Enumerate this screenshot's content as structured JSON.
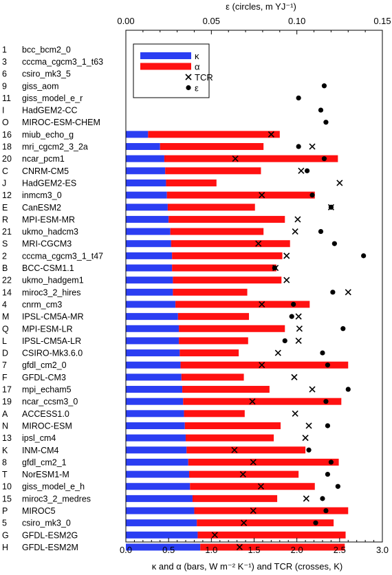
{
  "chart_data": {
    "type": "bar",
    "bar_mode": "stacked",
    "top_axis_label": "ε (circles, m YJ⁻¹)",
    "bottom_axis_label": "κ and α (bars, W m⁻² K⁻¹) and TCR (crosses, K)",
    "bottom_axis": {
      "range": [
        0.0,
        3.0
      ],
      "ticks": [
        "0.0",
        "0.5",
        "1.0",
        "1.5",
        "2.0",
        "2.5",
        "3.0"
      ]
    },
    "top_axis": {
      "range": [
        0.0,
        0.15
      ],
      "ticks": [
        "0.00",
        "0.05",
        "0.10",
        "0.15"
      ]
    },
    "legend": {
      "position": "top-left",
      "items": [
        {
          "label": "κ",
          "symbol": "bar",
          "color": "#2b3ef2"
        },
        {
          "label": "α",
          "symbol": "bar",
          "color": "#ff1111"
        },
        {
          "label": "TCR",
          "symbol": "cross",
          "color": "#000000"
        },
        {
          "label": "ε",
          "symbol": "dot",
          "color": "#000000"
        }
      ]
    },
    "colors": {
      "kappa": "#2b3ef2",
      "alpha": "#ff1111",
      "marker": "#000000"
    },
    "models": [
      {
        "code": "1",
        "name": "bcc_bcm2_0",
        "kappa": null,
        "alpha": null,
        "tcr": null,
        "eps": null
      },
      {
        "code": "3",
        "name": "cccma_cgcm3_1_t63",
        "kappa": null,
        "alpha": null,
        "tcr": null,
        "eps": null
      },
      {
        "code": "6",
        "name": "csiro_mk3_5",
        "kappa": null,
        "alpha": null,
        "tcr": null,
        "eps": null
      },
      {
        "code": "9",
        "name": "giss_aom",
        "kappa": null,
        "alpha": null,
        "tcr": null,
        "eps": 0.116
      },
      {
        "code": "11",
        "name": "giss_model_e_r",
        "kappa": null,
        "alpha": null,
        "tcr": null,
        "eps": 0.101
      },
      {
        "code": "I",
        "name": "HadGEM2-CC",
        "kappa": null,
        "alpha": null,
        "tcr": null,
        "eps": 0.114
      },
      {
        "code": "O",
        "name": "MIROC-ESM-CHEM",
        "kappa": null,
        "alpha": null,
        "tcr": null,
        "eps": 0.117
      },
      {
        "code": "16",
        "name": "miub_echo_g",
        "kappa": 0.26,
        "alpha": 1.54,
        "tcr": 1.7,
        "eps": null
      },
      {
        "code": "18",
        "name": "mri_cgcm2_3_2a",
        "kappa": 0.4,
        "alpha": 1.21,
        "tcr": 2.18,
        "eps": 0.101
      },
      {
        "code": "20",
        "name": "ncar_pcm1",
        "kappa": 0.45,
        "alpha": 2.03,
        "tcr": 1.28,
        "eps": 0.116
      },
      {
        "code": "C",
        "name": "CNRM-CM5",
        "kappa": 0.46,
        "alpha": 1.12,
        "tcr": 2.05,
        "eps": 0.106
      },
      {
        "code": "J",
        "name": "HadGEM2-ES",
        "kappa": 0.47,
        "alpha": 0.59,
        "tcr": 2.5,
        "eps": null
      },
      {
        "code": "12",
        "name": "inmcm3_0",
        "kappa": 0.48,
        "alpha": 1.73,
        "tcr": 1.59,
        "eps": 0.109
      },
      {
        "code": "E",
        "name": "CanESM2",
        "kappa": 0.49,
        "alpha": 1.02,
        "tcr": 2.4,
        "eps": 0.12
      },
      {
        "code": "R",
        "name": "MPI-ESM-MR",
        "kappa": 0.5,
        "alpha": 1.36,
        "tcr": 2.01,
        "eps": null
      },
      {
        "code": "21",
        "name": "ukmo_hadcm3",
        "kappa": 0.52,
        "alpha": 1.09,
        "tcr": 1.98,
        "eps": 0.114
      },
      {
        "code": "S",
        "name": "MRI-CGCM3",
        "kappa": 0.53,
        "alpha": 1.39,
        "tcr": 1.55,
        "eps": 0.122
      },
      {
        "code": "2",
        "name": "cccma_cgcm3_1_t47",
        "kappa": 0.54,
        "alpha": 1.29,
        "tcr": 1.88,
        "eps": 0.139
      },
      {
        "code": "B",
        "name": "BCC-CSM1.1",
        "kappa": 0.54,
        "alpha": 1.22,
        "tcr": 1.75,
        "eps": 0.087
      },
      {
        "code": "22",
        "name": "ukmo_hadgem1",
        "kappa": 0.55,
        "alpha": 1.27,
        "tcr": 1.88,
        "eps": null
      },
      {
        "code": "14",
        "name": "miroc3_2_hires",
        "kappa": 0.55,
        "alpha": 0.87,
        "tcr": 2.6,
        "eps": 0.121
      },
      {
        "code": "4",
        "name": "cnrm_cm3",
        "kappa": 0.58,
        "alpha": 1.57,
        "tcr": 1.59,
        "eps": 0.098
      },
      {
        "code": "M",
        "name": "IPSL-CM5A-MR",
        "kappa": 0.61,
        "alpha": 0.83,
        "tcr": 2.02,
        "eps": 0.097
      },
      {
        "code": "Q",
        "name": "MPI-ESM-LR",
        "kappa": 0.62,
        "alpha": 1.24,
        "tcr": 2.03,
        "eps": 0.127
      },
      {
        "code": "L",
        "name": "IPSL-CM5A-LR",
        "kappa": 0.62,
        "alpha": 0.81,
        "tcr": 2.02,
        "eps": 0.093
      },
      {
        "code": "D",
        "name": "CSIRO-Mk3.6.0",
        "kappa": 0.63,
        "alpha": 0.69,
        "tcr": 1.78,
        "eps": 0.115
      },
      {
        "code": "7",
        "name": "gfdl_cm2_0",
        "kappa": 0.64,
        "alpha": 1.96,
        "tcr": 1.59,
        "eps": 0.118
      },
      {
        "code": "F",
        "name": "GFDL-CM3",
        "kappa": 0.65,
        "alpha": 0.73,
        "tcr": 1.97,
        "eps": null
      },
      {
        "code": "17",
        "name": "mpi_echam5",
        "kappa": 0.66,
        "alpha": 1.02,
        "tcr": 2.18,
        "eps": 0.13
      },
      {
        "code": "19",
        "name": "ncar_ccsm3_0",
        "kappa": 0.67,
        "alpha": 1.85,
        "tcr": 1.48,
        "eps": 0.117
      },
      {
        "code": "A",
        "name": "ACCESS1.0",
        "kappa": 0.68,
        "alpha": 0.71,
        "tcr": 1.98,
        "eps": null
      },
      {
        "code": "N",
        "name": "MIROC-ESM",
        "kappa": 0.69,
        "alpha": 1.12,
        "tcr": 2.14,
        "eps": 0.118
      },
      {
        "code": "13",
        "name": "ipsl_cm4",
        "kappa": 0.7,
        "alpha": 1.03,
        "tcr": 2.1,
        "eps": null
      },
      {
        "code": "K",
        "name": "INM-CM4",
        "kappa": 0.71,
        "alpha": 1.39,
        "tcr": 1.27,
        "eps": 0.107
      },
      {
        "code": "8",
        "name": "gfdl_cm2_1",
        "kappa": 0.73,
        "alpha": 1.76,
        "tcr": 1.49,
        "eps": 0.12
      },
      {
        "code": "T",
        "name": "NorESM1-M",
        "kappa": 0.74,
        "alpha": 1.28,
        "tcr": 1.37,
        "eps": 0.118
      },
      {
        "code": "10",
        "name": "giss_model_e_h",
        "kappa": 0.75,
        "alpha": 1.46,
        "tcr": 1.58,
        "eps": 0.124
      },
      {
        "code": "15",
        "name": "miroc3_2_medres",
        "kappa": 0.78,
        "alpha": 0.99,
        "tcr": 2.11,
        "eps": 0.115
      },
      {
        "code": "P",
        "name": "MIROC5",
        "kappa": 0.8,
        "alpha": 1.8,
        "tcr": 1.49,
        "eps": 0.117
      },
      {
        "code": "5",
        "name": "csiro_mk3_0",
        "kappa": 0.83,
        "alpha": 1.6,
        "tcr": 1.38,
        "eps": 0.111
      },
      {
        "code": "G",
        "name": "GFDL-ESM2G",
        "kappa": 0.84,
        "alpha": 1.73,
        "tcr": 1.04,
        "eps": null
      },
      {
        "code": "H",
        "name": "GFDL-ESM2M",
        "kappa": 0.87,
        "alpha": 1.69,
        "tcr": 1.33,
        "eps": null
      }
    ]
  }
}
